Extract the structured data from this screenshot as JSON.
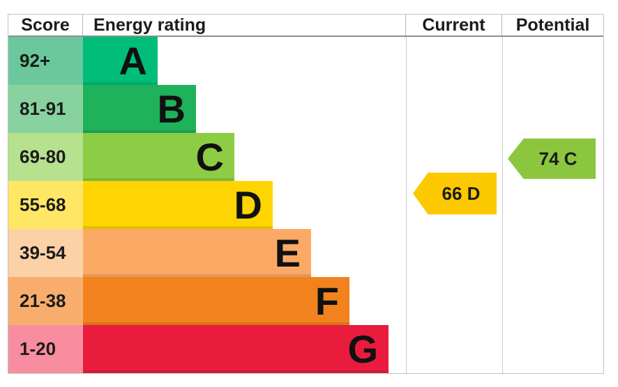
{
  "header": {
    "score": "Score",
    "energy_rating": "Energy rating",
    "current": "Current",
    "potential": "Potential"
  },
  "chart_data": {
    "type": "epc_energy_rating_chart",
    "title": "Energy rating",
    "columns": [
      "Score",
      "Energy rating",
      "Current",
      "Potential"
    ],
    "bands": [
      {
        "letter": "A",
        "score_range": "92+",
        "bar_color": "#00bd7a",
        "score_cell_color": "#6ac89c"
      },
      {
        "letter": "B",
        "score_range": "81-91",
        "bar_color": "#1eb25a",
        "score_cell_color": "#87d29f"
      },
      {
        "letter": "C",
        "score_range": "69-80",
        "bar_color": "#8ccd45",
        "score_cell_color": "#b6e18f"
      },
      {
        "letter": "D",
        "score_range": "55-68",
        "bar_color": "#fed402",
        "score_cell_color": "#ffe765"
      },
      {
        "letter": "E",
        "score_range": "39-54",
        "bar_color": "#fbaa66",
        "score_cell_color": "#fcd1a6"
      },
      {
        "letter": "F",
        "score_range": "21-38",
        "bar_color": "#f2821e",
        "score_cell_color": "#f9ad6d"
      },
      {
        "letter": "G",
        "score_range": "1-20",
        "bar_color": "#e91c3d",
        "score_cell_color": "#f88da0"
      }
    ],
    "current": {
      "value": 66,
      "band": "D",
      "label": "66 D",
      "arrow_color": "#fcc900"
    },
    "potential": {
      "value": 74,
      "band": "C",
      "label": "74 C",
      "arrow_color": "#8cc63f"
    }
  }
}
